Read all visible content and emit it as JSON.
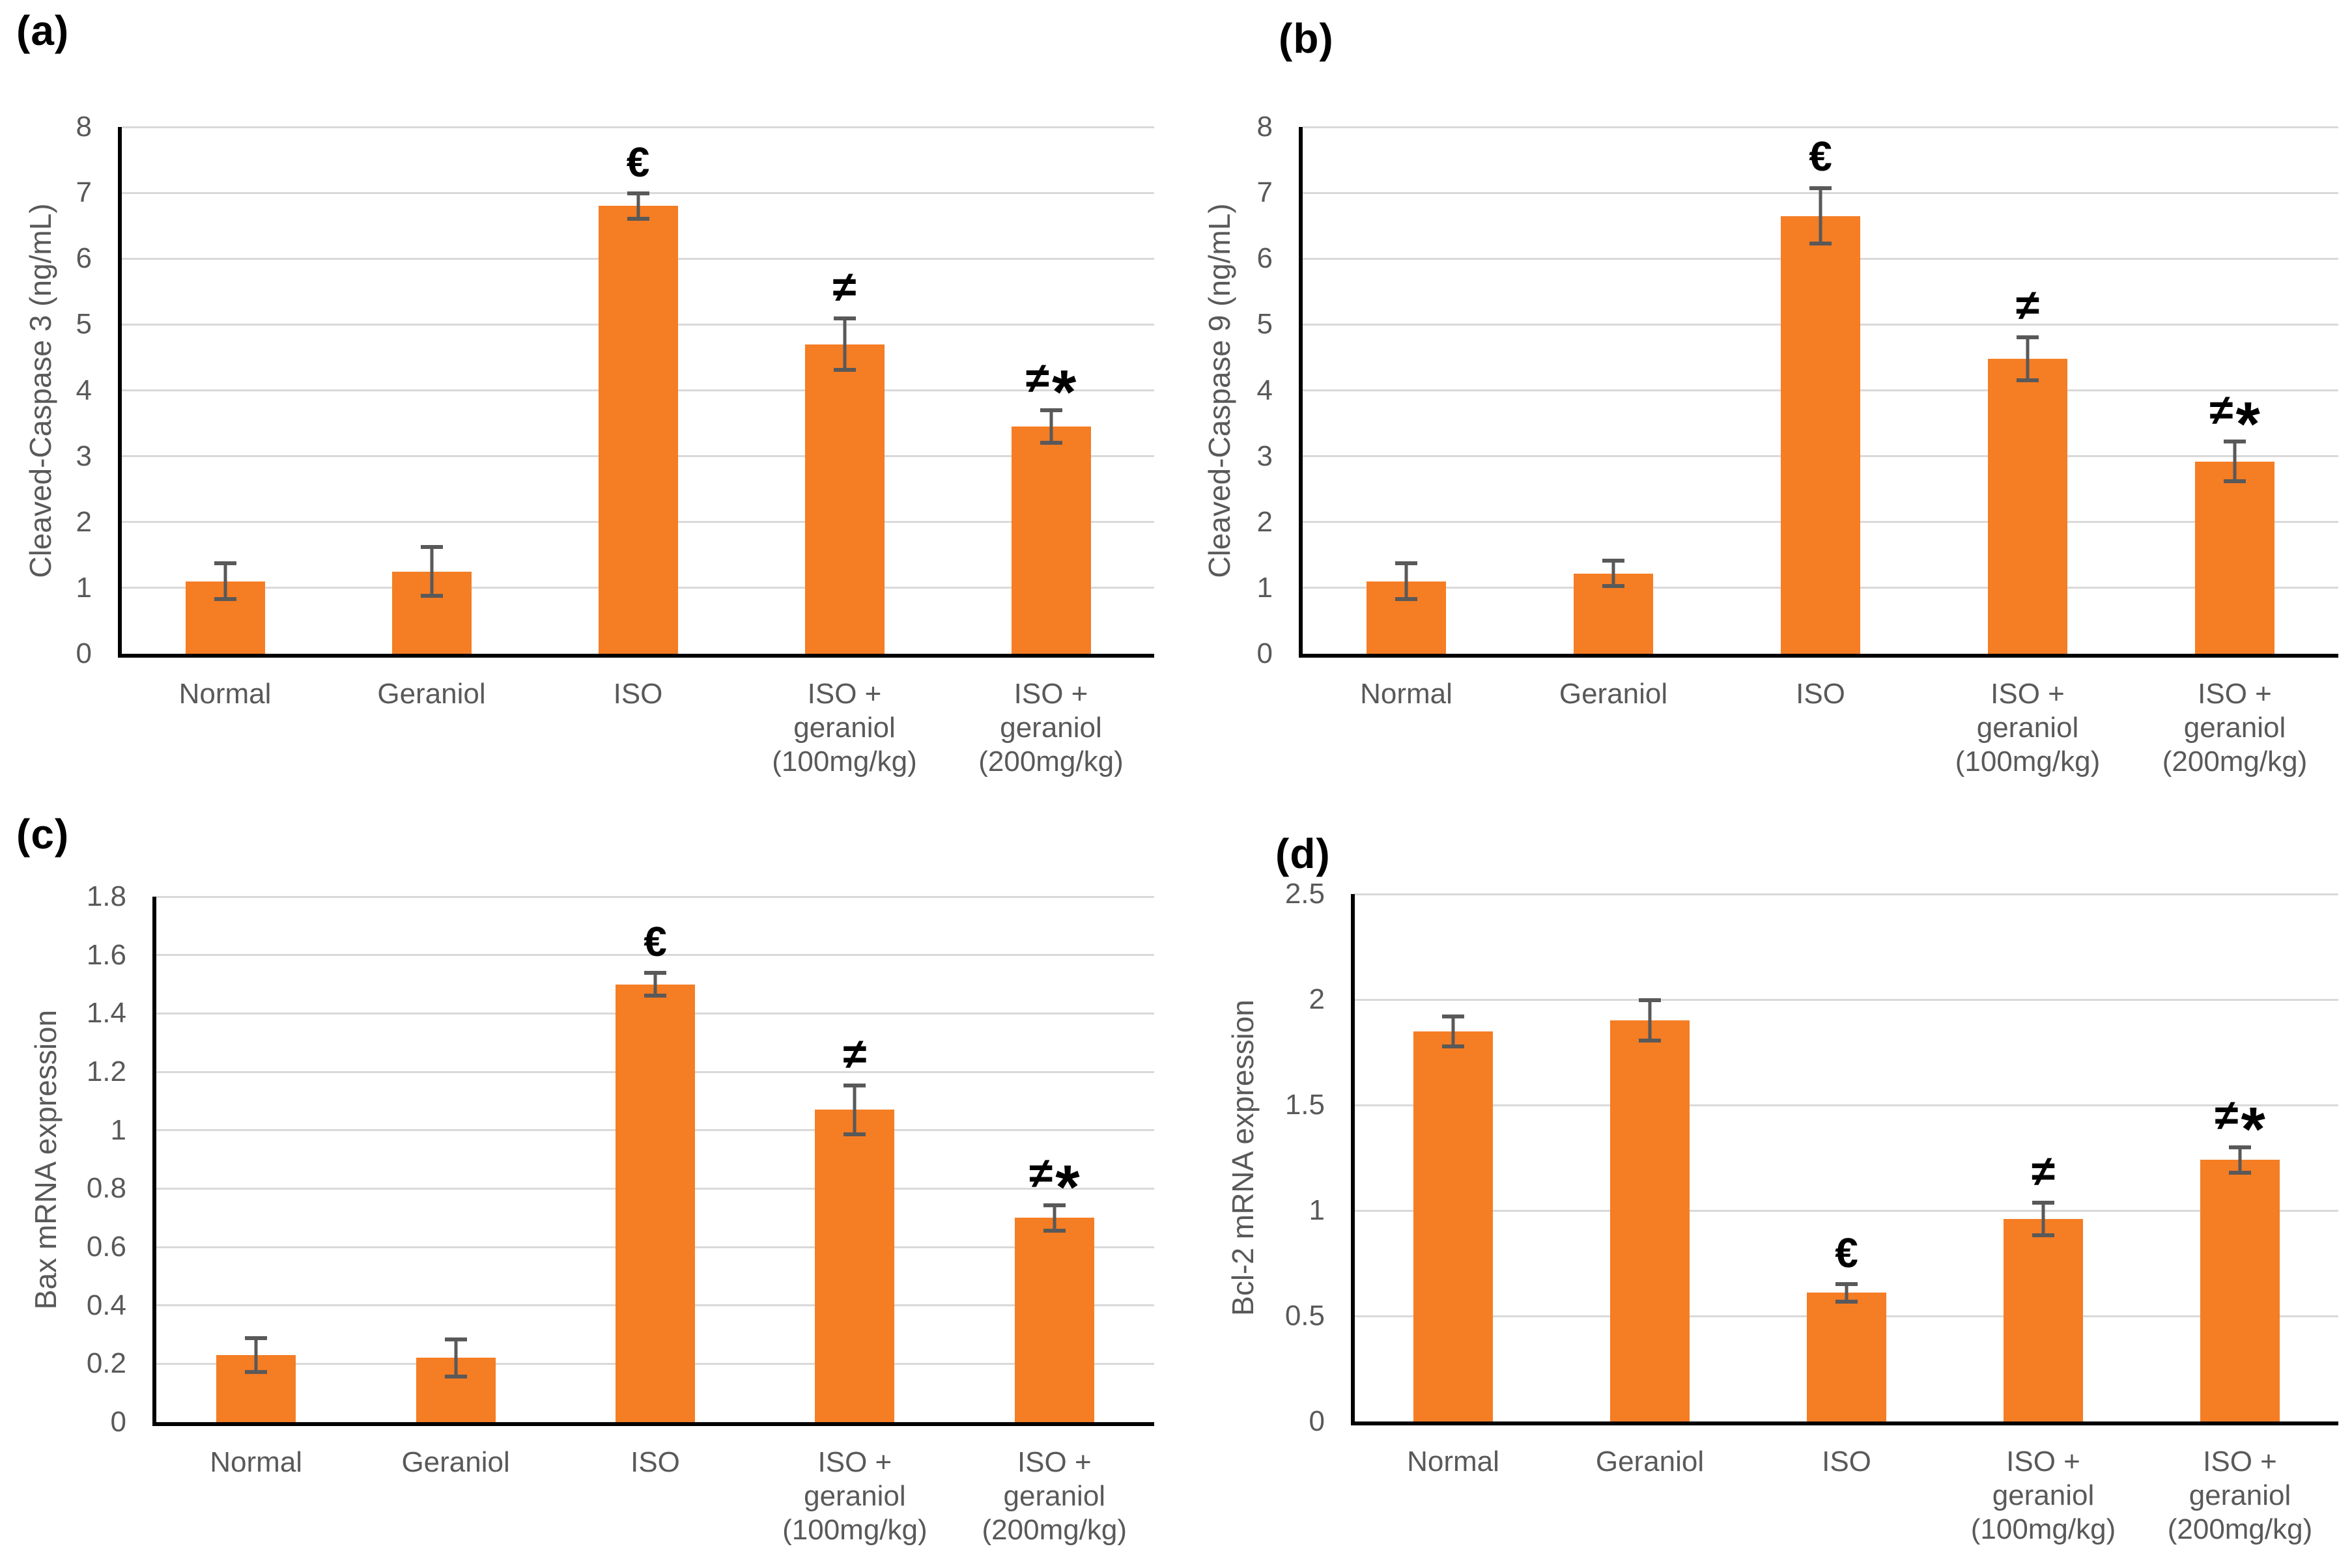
{
  "figure": {
    "background": "#ffffff"
  },
  "colors": {
    "bar": "#F57D24",
    "error_bar": "#595959",
    "gridline": "#D9D9D9",
    "axis": "#000000",
    "tick_text": "#595959",
    "panel_letter": "#000000",
    "marker_text": "#000000"
  },
  "chart_data": [
    {
      "id": "a",
      "type": "bar",
      "panel_label": "(a)",
      "ylabel": "Cleaved-Caspase 3 (ng/mL)",
      "xlabel": "",
      "ylim": [
        0,
        8
      ],
      "yticks": [
        0,
        1,
        2,
        3,
        4,
        5,
        6,
        7,
        8
      ],
      "ytick_labels": [
        "0",
        "1",
        "2",
        "3",
        "4",
        "5",
        "6",
        "7",
        "8"
      ],
      "grid": true,
      "legend": null,
      "categories": [
        "Normal",
        "Geraniol",
        "ISO",
        "ISO + geraniol (100mg/kg)",
        "ISO + geraniol (200mg/kg)"
      ],
      "category_label_lines": [
        [
          "Normal"
        ],
        [
          "Geraniol"
        ],
        [
          "ISO"
        ],
        [
          "ISO +",
          "geraniol",
          "(100mg/kg)"
        ],
        [
          "ISO +",
          "geraniol",
          "(200mg/kg)"
        ]
      ],
      "values": [
        1.1,
        1.25,
        6.8,
        4.7,
        3.45
      ],
      "errors": [
        0.3,
        0.4,
        0.22,
        0.42,
        0.28
      ],
      "sig_markers": [
        "",
        "",
        "€",
        "≠",
        "≠*"
      ]
    },
    {
      "id": "b",
      "type": "bar",
      "panel_label": "(b)",
      "ylabel": "Cleaved-Caspase 9 (ng/mL)",
      "xlabel": "",
      "ylim": [
        0,
        8
      ],
      "yticks": [
        0,
        1,
        2,
        3,
        4,
        5,
        6,
        7,
        8
      ],
      "ytick_labels": [
        "0",
        "1",
        "2",
        "3",
        "4",
        "5",
        "6",
        "7",
        "8"
      ],
      "grid": true,
      "legend": null,
      "categories": [
        "Normal",
        "Geraniol",
        "ISO",
        "ISO + geraniol (100mg/kg)",
        "ISO + geraniol (200mg/kg)"
      ],
      "category_label_lines": [
        [
          "Normal"
        ],
        [
          "Geraniol"
        ],
        [
          "ISO"
        ],
        [
          "ISO +",
          "geraniol",
          "(100mg/kg)"
        ],
        [
          "ISO +",
          "geraniol",
          "(200mg/kg)"
        ]
      ],
      "values": [
        1.1,
        1.22,
        6.65,
        4.48,
        2.92
      ],
      "errors": [
        0.3,
        0.22,
        0.45,
        0.36,
        0.33
      ],
      "sig_markers": [
        "",
        "",
        "€",
        "≠",
        "≠*"
      ]
    },
    {
      "id": "c",
      "type": "bar",
      "panel_label": "(c)",
      "ylabel": "Bax mRNA expression",
      "xlabel": "",
      "ylim": [
        0,
        1.8
      ],
      "yticks": [
        0,
        0.2,
        0.4,
        0.6,
        0.8,
        1,
        1.2,
        1.4,
        1.6,
        1.8
      ],
      "ytick_labels": [
        "0",
        "0.2",
        "0.4",
        "0.6",
        "0.8",
        "1",
        "1.2",
        "1.4",
        "1.6",
        "1.8"
      ],
      "grid": true,
      "legend": null,
      "categories": [
        "Normal",
        "Geraniol",
        "ISO",
        "ISO + geraniol (100mg/kg)",
        "ISO + geraniol (200mg/kg)"
      ],
      "category_label_lines": [
        [
          "Normal"
        ],
        [
          "Geraniol"
        ],
        [
          "ISO"
        ],
        [
          "ISO +",
          "geraniol",
          "(100mg/kg)"
        ],
        [
          "ISO +",
          "geraniol",
          "(200mg/kg)"
        ]
      ],
      "values": [
        0.23,
        0.22,
        1.5,
        1.07,
        0.7
      ],
      "errors": [
        0.065,
        0.07,
        0.045,
        0.09,
        0.05
      ],
      "sig_markers": [
        "",
        "",
        "€",
        "≠",
        "≠*"
      ]
    },
    {
      "id": "d",
      "type": "bar",
      "panel_label": "(d)",
      "ylabel": "Bcl-2 mRNA expression",
      "xlabel": "",
      "ylim": [
        0,
        2.5
      ],
      "yticks": [
        0,
        0.5,
        1,
        1.5,
        2,
        2.5
      ],
      "ytick_labels": [
        "0",
        "0.5",
        "1",
        "1.5",
        "2",
        "2.5"
      ],
      "grid": true,
      "legend": null,
      "categories": [
        "Normal",
        "Geraniol",
        "ISO",
        "ISO + geraniol (100mg/kg)",
        "ISO + geraniol (200mg/kg)"
      ],
      "category_label_lines": [
        [
          "Normal"
        ],
        [
          "Geraniol"
        ],
        [
          "ISO"
        ],
        [
          "ISO +",
          "geraniol",
          "(100mg/kg)"
        ],
        [
          "ISO +",
          "geraniol",
          "(200mg/kg)"
        ]
      ],
      "values": [
        1.85,
        1.9,
        0.61,
        0.96,
        1.24
      ],
      "errors": [
        0.08,
        0.105,
        0.05,
        0.085,
        0.07
      ],
      "sig_markers": [
        "",
        "",
        "€",
        "≠",
        "≠*"
      ]
    }
  ]
}
